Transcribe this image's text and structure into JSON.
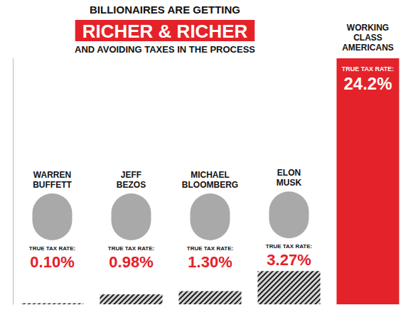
{
  "chart_data": {
    "type": "bar",
    "title": "BILLIONAIRES ARE GETTING",
    "title_highlight": "RICHER & RICHER",
    "subtitle": "AND AVOIDING TAXES IN THE PROCESS",
    "label_heading": "TRUE TAX RATE:",
    "categories": [
      "WARREN BUFFETT",
      "JEFF BEZOS",
      "MICHAEL BLOOMBERG",
      "ELON MUSK",
      "WORKING CLASS AMERICANS"
    ],
    "values": [
      0.1,
      0.98,
      1.3,
      3.27,
      24.2
    ],
    "value_labels": [
      "0.10%",
      "0.98%",
      "1.30%",
      "3.27%",
      "24.2%"
    ],
    "colors": [
      "#d4d4d4",
      "#d4d4d4",
      "#d4d4d4",
      "#d4d4d4",
      "#e42229"
    ],
    "ylim": [
      0,
      24.2
    ],
    "grid": false,
    "data_labels": true,
    "tick_labels": false
  }
}
